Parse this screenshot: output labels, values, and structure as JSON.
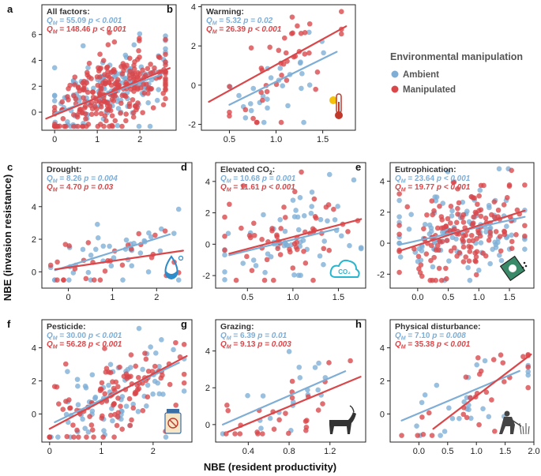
{
  "xlabel": "NBE (resident productivity)",
  "ylabel": "NBE (invasion resistance)",
  "legend": {
    "title": "Environmental manipulation",
    "entries": [
      {
        "name": "Ambient",
        "color": "#7eaed6"
      },
      {
        "name": "Manipulated",
        "color": "#d9474a"
      }
    ]
  },
  "chart_data": [
    {
      "letter": "a",
      "title": "All factors:",
      "type": "scatter",
      "icon": "none",
      "xlim": [
        -0.3,
        2.85
      ],
      "ylim": [
        -1.4,
        8.3
      ],
      "xticks": [
        0,
        1,
        2
      ],
      "yticks": [
        0,
        2,
        4,
        6
      ],
      "stat_ambient": {
        "label": "Q",
        "sub": "M",
        "value": "55.09",
        "p": "p < 0.001"
      },
      "stat_manip": {
        "label": "Q",
        "sub": "M",
        "value": "148.46",
        "p": "p < 0.001"
      },
      "fit_ambient": {
        "x": [
          0.0,
          2.5
        ],
        "y": [
          -0.1,
          2.9
        ]
      },
      "fit_manip": {
        "x": [
          -0.2,
          2.7
        ],
        "y": [
          -0.5,
          3.4
        ]
      },
      "n": {
        "ambient": 140,
        "manipulated": 260
      },
      "x_range": [
        0.0,
        2.6
      ],
      "y_range": [
        -1.1,
        6.4
      ]
    },
    {
      "letter": "b",
      "title": "Warming:",
      "type": "scatter",
      "icon": "thermometer-icon",
      "xlim": [
        0.2,
        1.85
      ],
      "ylim": [
        -2.3,
        4.1
      ],
      "xticks": [
        0.5,
        1.0,
        1.5
      ],
      "yticks": [
        -2,
        0,
        2,
        4
      ],
      "stat_ambient": {
        "label": "Q",
        "sub": "M",
        "value": "5.32",
        "p": "p = 0.02"
      },
      "stat_manip": {
        "label": "Q",
        "sub": "M",
        "value": "26.39",
        "p": "p < 0.001"
      },
      "fit_ambient": {
        "x": [
          0.5,
          1.65
        ],
        "y": [
          -1.0,
          1.7
        ]
      },
      "fit_manip": {
        "x": [
          0.28,
          1.75
        ],
        "y": [
          -0.85,
          3.0
        ]
      },
      "n": {
        "ambient": 28,
        "manipulated": 42
      },
      "x_range": [
        0.5,
        1.7
      ],
      "y_range": [
        -1.9,
        3.8
      ]
    },
    {
      "letter": "c",
      "title": "Drought:",
      "type": "scatter",
      "icon": "water-drop-icon",
      "xlim": [
        -0.6,
        2.8
      ],
      "ylim": [
        -1.0,
        6.7
      ],
      "xticks": [
        0,
        1,
        2
      ],
      "yticks": [
        0,
        2,
        4
      ],
      "stat_ambient": {
        "label": "Q",
        "sub": "M",
        "value": "8.26",
        "p": "p = 0.004"
      },
      "stat_manip": {
        "label": "Q",
        "sub": "M",
        "value": "4.70",
        "p": "p = 0.03"
      },
      "fit_ambient": {
        "x": [
          -0.3,
          2.3
        ],
        "y": [
          0.1,
          2.3
        ]
      },
      "fit_manip": {
        "x": [
          -0.3,
          2.6
        ],
        "y": [
          0.15,
          1.3
        ]
      },
      "n": {
        "ambient": 40,
        "manipulated": 30
      },
      "x_range": [
        -0.4,
        2.5
      ],
      "y_range": [
        -0.5,
        6.2
      ]
    },
    {
      "letter": "d",
      "title": "Elevated CO",
      "title_sub": "2",
      "title_after": ":",
      "type": "scatter",
      "icon": "co2-cloud-icon",
      "xlim": [
        0.15,
        1.8
      ],
      "ylim": [
        -2.8,
        5.2
      ],
      "xticks": [
        0.5,
        1.0,
        1.5
      ],
      "yticks": [
        -2,
        0,
        2,
        4
      ],
      "stat_ambient": {
        "label": "Q",
        "sub": "M",
        "value": "10.68",
        "p": "p = 0.001"
      },
      "stat_manip": {
        "label": "Q",
        "sub": "M",
        "value": "11.61",
        "p": "p < 0.001"
      },
      "fit_ambient": {
        "x": [
          0.3,
          1.5
        ],
        "y": [
          -0.7,
          1.0
        ]
      },
      "fit_manip": {
        "x": [
          0.3,
          1.75
        ],
        "y": [
          -0.6,
          1.6
        ]
      },
      "n": {
        "ambient": 55,
        "manipulated": 60
      },
      "x_range": [
        0.25,
        1.75
      ],
      "y_range": [
        -2.3,
        4.6
      ]
    },
    {
      "letter": "e",
      "title": "Eutrophication:",
      "type": "scatter",
      "icon": "fertilizer-icon",
      "xlim": [
        -0.45,
        1.9
      ],
      "ylim": [
        -2.9,
        5.2
      ],
      "xticks": [
        0.0,
        0.5,
        1.0,
        1.5
      ],
      "yticks": [
        -2,
        0,
        2,
        4
      ],
      "stat_ambient": {
        "label": "Q",
        "sub": "M",
        "value": "23.64",
        "p": "p < 0.001"
      },
      "stat_manip": {
        "label": "Q",
        "sub": "M",
        "value": "19.77",
        "p": "p < 0.001"
      },
      "fit_ambient": {
        "x": [
          -0.3,
          1.75
        ],
        "y": [
          -0.1,
          1.7
        ]
      },
      "fit_manip": {
        "x": [
          -0.3,
          1.75
        ],
        "y": [
          -0.5,
          2.1
        ]
      },
      "n": {
        "ambient": 110,
        "manipulated": 150
      },
      "x_range": [
        -0.3,
        1.75
      ],
      "y_range": [
        -2.4,
        4.8
      ]
    },
    {
      "letter": "f",
      "title": "Pesticide:",
      "type": "scatter",
      "icon": "pesticide-bottle-icon",
      "xlim": [
        -0.15,
        2.75
      ],
      "ylim": [
        -1.7,
        5.7
      ],
      "xticks": [
        0,
        1,
        2
      ],
      "yticks": [
        0,
        2,
        4
      ],
      "stat_ambient": {
        "label": "Q",
        "sub": "M",
        "value": "30.00",
        "p": "p < 0.001"
      },
      "stat_manip": {
        "label": "Q",
        "sub": "M",
        "value": "56.28",
        "p": "p < 0.001"
      },
      "fit_ambient": {
        "x": [
          0.1,
          2.5
        ],
        "y": [
          -0.5,
          3.1
        ]
      },
      "fit_manip": {
        "x": [
          0.0,
          2.65
        ],
        "y": [
          -0.9,
          3.5
        ]
      },
      "n": {
        "ambient": 75,
        "manipulated": 110
      },
      "x_range": [
        0.0,
        2.6
      ],
      "y_range": [
        -1.4,
        5.5
      ]
    },
    {
      "letter": "g",
      "title": "Grazing:",
      "type": "scatter",
      "icon": "goat-icon",
      "xlim": [
        0.08,
        1.55
      ],
      "ylim": [
        -0.95,
        5.7
      ],
      "xticks": [
        0.4,
        0.8,
        1.2
      ],
      "yticks": [
        0,
        2,
        4
      ],
      "stat_ambient": {
        "label": "Q",
        "sub": "M",
        "value": "6.39",
        "p": "p = 0.01"
      },
      "stat_manip": {
        "label": "Q",
        "sub": "M",
        "value": "9.13",
        "p": "p = 0.003"
      },
      "fit_ambient": {
        "x": [
          0.15,
          1.35
        ],
        "y": [
          0.0,
          2.9
        ]
      },
      "fit_manip": {
        "x": [
          0.2,
          1.5
        ],
        "y": [
          -0.4,
          2.6
        ]
      },
      "n": {
        "ambient": 20,
        "manipulated": 28
      },
      "x_range": [
        0.15,
        1.4
      ],
      "y_range": [
        -0.5,
        5.5
      ]
    },
    {
      "letter": "h",
      "title": "Physical disturbance:",
      "type": "scatter",
      "icon": "worker-icon",
      "xlim": [
        -0.5,
        2.0
      ],
      "ylim": [
        -1.7,
        5.7
      ],
      "xticks": [
        0.0,
        0.5,
        1.0,
        1.5,
        2.0
      ],
      "yticks": [
        0,
        2,
        4
      ],
      "stat_ambient": {
        "label": "Q",
        "sub": "M",
        "value": "7.10",
        "p": "p = 0.008"
      },
      "stat_manip": {
        "label": "Q",
        "sub": "M",
        "value": "35.38",
        "p": "p < 0.001"
      },
      "fit_ambient": {
        "x": [
          -0.3,
          1.75
        ],
        "y": [
          -0.4,
          2.6
        ]
      },
      "fit_manip": {
        "x": [
          0.25,
          1.95
        ],
        "y": [
          -0.9,
          3.6
        ]
      },
      "n": {
        "ambient": 26,
        "manipulated": 30
      },
      "x_range": [
        -0.3,
        1.9
      ],
      "y_range": [
        -1.3,
        5.0
      ]
    }
  ]
}
